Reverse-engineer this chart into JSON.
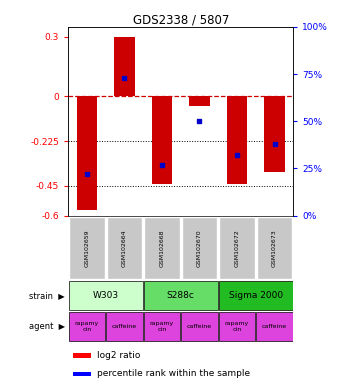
{
  "title": "GDS2338 / 5807",
  "samples": [
    "GSM102659",
    "GSM102664",
    "GSM102668",
    "GSM102670",
    "GSM102672",
    "GSM102673"
  ],
  "log2_ratio": [
    -0.57,
    0.3,
    -0.44,
    -0.05,
    -0.44,
    -0.38
  ],
  "percentile_rank": [
    22,
    73,
    27,
    50,
    32,
    38
  ],
  "strains": [
    {
      "label": "W303",
      "start": 0,
      "end": 2,
      "color": "#ccffcc"
    },
    {
      "label": "S288c",
      "start": 2,
      "end": 4,
      "color": "#66dd66"
    },
    {
      "label": "Sigma 2000",
      "start": 4,
      "end": 6,
      "color": "#22bb22"
    }
  ],
  "agents": [
    {
      "label": "rapamycin",
      "start": 0,
      "end": 1
    },
    {
      "label": "caffeine",
      "start": 1,
      "end": 2
    },
    {
      "label": "rapamycin",
      "start": 2,
      "end": 3
    },
    {
      "label": "caffeine",
      "start": 3,
      "end": 4
    },
    {
      "label": "rapamycin",
      "start": 4,
      "end": 5
    },
    {
      "label": "caffeine",
      "start": 5,
      "end": 6
    }
  ],
  "agent_color": "#dd44dd",
  "ylim": [
    -0.6,
    0.35
  ],
  "yticks_left": [
    0.3,
    0,
    -0.225,
    -0.45,
    -0.6
  ],
  "yticks_right": [
    100,
    75,
    50,
    25,
    0
  ],
  "bar_color": "#cc0000",
  "dot_color": "#0000cc",
  "hline_color": "#cc0000",
  "dotted_lines": [
    -0.225,
    -0.45
  ],
  "bar_width": 0.55,
  "sample_bg": "#c8c8c8"
}
